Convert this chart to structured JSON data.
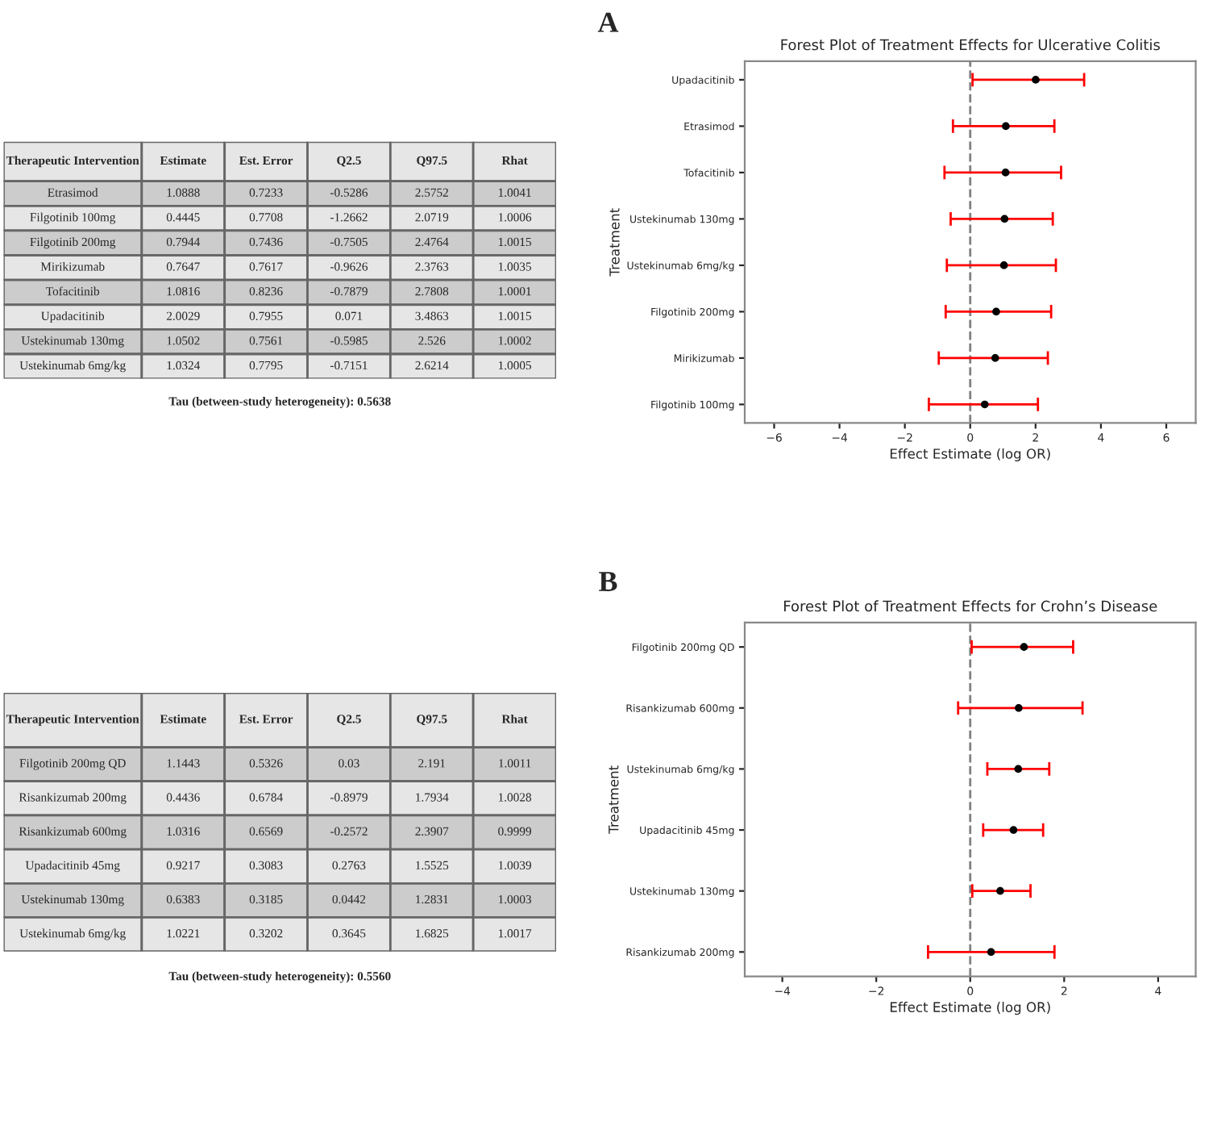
{
  "chart_data": [
    {
      "type": "other",
      "title": "A",
      "subtitle": "Tau (between-study heterogeneity): 0.5638",
      "categories": [
        "Therapeutic Intervention",
        "Estimate",
        "Est. Error",
        "Q2.5",
        "Q97.5",
        "Rhat"
      ],
      "annotations": [
        "Etrasimod",
        "1.0888",
        "0.7233",
        "-0.5286",
        "2.5752",
        "1.0041",
        "Filgotinib 100mg",
        "0.4445",
        "0.7708",
        "-1.2662",
        "2.0719",
        "1.0006",
        "Filgotinib 200mg",
        "0.7944",
        "0.7436",
        "-0.7505",
        "2.4764",
        "1.0015",
        "Mirikizumab",
        "0.7647",
        "0.7617",
        "-0.9626",
        "2.3763",
        "1.0035",
        "Tofacitinib",
        "1.0816",
        "0.8236",
        "-0.7879",
        "2.7808",
        "1.0001",
        "Upadacitinib",
        "2.0029",
        "0.7955",
        "0.071",
        "3.4863",
        "1.0015",
        "Ustekinumab 130mg",
        "1.0502",
        "0.7561",
        "-0.5985",
        "2.526",
        "1.0002",
        "Ustekinumab 6mg/kg",
        "1.0324",
        "0.7795",
        "-0.7151",
        "2.6214",
        "1.0005"
      ]
    },
    {
      "type": "scatter",
      "orientation": "horizontal",
      "title": "Forest Plot of Treatment Effects for Ulcerative Colitis",
      "xlabel": "Effect Estimate (log OR)",
      "ylabel": "Treatment",
      "categories": [
        "Upadacitinib",
        "Etrasimod",
        "Tofacitinib",
        "Ustekinumab 130mg",
        "Ustekinumab 6mg/kg",
        "Filgotinib 200mg",
        "Mirikizumab",
        "Filgotinib 100mg"
      ],
      "series": [
        {
          "color": "#000000",
          "values": [
            2.0029,
            1.0888,
            1.0816,
            1.0502,
            1.0324,
            0.7944,
            0.7647,
            0.4445
          ],
          "errors": [
            [
              0.071,
              3.4863
            ],
            [
              -0.5286,
              2.5752
            ],
            [
              -0.7879,
              2.7808
            ],
            [
              -0.5985,
              2.526
            ],
            [
              -0.7151,
              2.6214
            ],
            [
              -0.7505,
              2.4764
            ],
            [
              -0.9626,
              2.3763
            ],
            [
              -1.2662,
              2.0719
            ]
          ]
        }
      ],
      "xlim": [
        -6.9,
        6.9
      ],
      "xticks": [
        {
          "value": -6,
          "label": "−6"
        },
        {
          "value": -4,
          "label": "−4"
        },
        {
          "value": -2,
          "label": "−2"
        },
        0,
        2,
        4,
        6
      ],
      "ref_lines": [
        {
          "axis": "x",
          "value": 0,
          "color": "#808080",
          "line_style": "dashed"
        }
      ],
      "grid": false
    },
    {
      "type": "other",
      "title": "B",
      "subtitle": "Tau (between-study heterogeneity): 0.5560",
      "categories": [
        "Therapeutic Intervention",
        "Estimate",
        "Est. Error",
        "Q2.5",
        "Q97.5",
        "Rhat"
      ],
      "annotations": [
        "Filgotinib 200mg QD",
        "1.1443",
        "0.5326",
        "0.03",
        "2.191",
        "1.0011",
        "Risankizumab 200mg",
        "0.4436",
        "0.6784",
        "-0.8979",
        "1.7934",
        "1.0028",
        "Risankizumab 600mg",
        "1.0316",
        "0.6569",
        "-0.2572",
        "2.3907",
        "0.9999",
        "Upadacitinib 45mg",
        "0.9217",
        "0.3083",
        "0.2763",
        "1.5525",
        "1.0039",
        "Ustekinumab 130mg",
        "0.6383",
        "0.3185",
        "0.0442",
        "1.2831",
        "1.0003",
        "Ustekinumab 6mg/kg",
        "1.0221",
        "0.3202",
        "0.3645",
        "1.6825",
        "1.0017"
      ]
    },
    {
      "type": "scatter",
      "orientation": "horizontal",
      "title": "Forest Plot of Treatment Effects for Crohn’s Disease",
      "xlabel": "Effect Estimate (log OR)",
      "ylabel": "Treatment",
      "categories": [
        "Filgotinib 200mg QD",
        "Risankizumab 600mg",
        "Ustekinumab 6mg/kg",
        "Upadacitinib 45mg",
        "Ustekinumab 130mg",
        "Risankizumab 200mg"
      ],
      "series": [
        {
          "color": "#000000",
          "values": [
            1.1443,
            1.0316,
            1.0221,
            0.9217,
            0.6383,
            0.4436
          ],
          "errors": [
            [
              0.03,
              2.191
            ],
            [
              -0.2572,
              2.3907
            ],
            [
              0.3645,
              1.6825
            ],
            [
              0.2763,
              1.5525
            ],
            [
              0.0442,
              1.2831
            ],
            [
              -0.8979,
              1.7934
            ]
          ]
        }
      ],
      "xlim": [
        -4.8,
        4.8
      ],
      "xticks": [
        {
          "value": -4,
          "label": "−4"
        },
        {
          "value": -2,
          "label": "−2"
        },
        0,
        2,
        4
      ],
      "ref_lines": [
        {
          "axis": "x",
          "value": 0,
          "color": "#808080",
          "line_style": "dashed"
        }
      ],
      "grid": false
    }
  ]
}
